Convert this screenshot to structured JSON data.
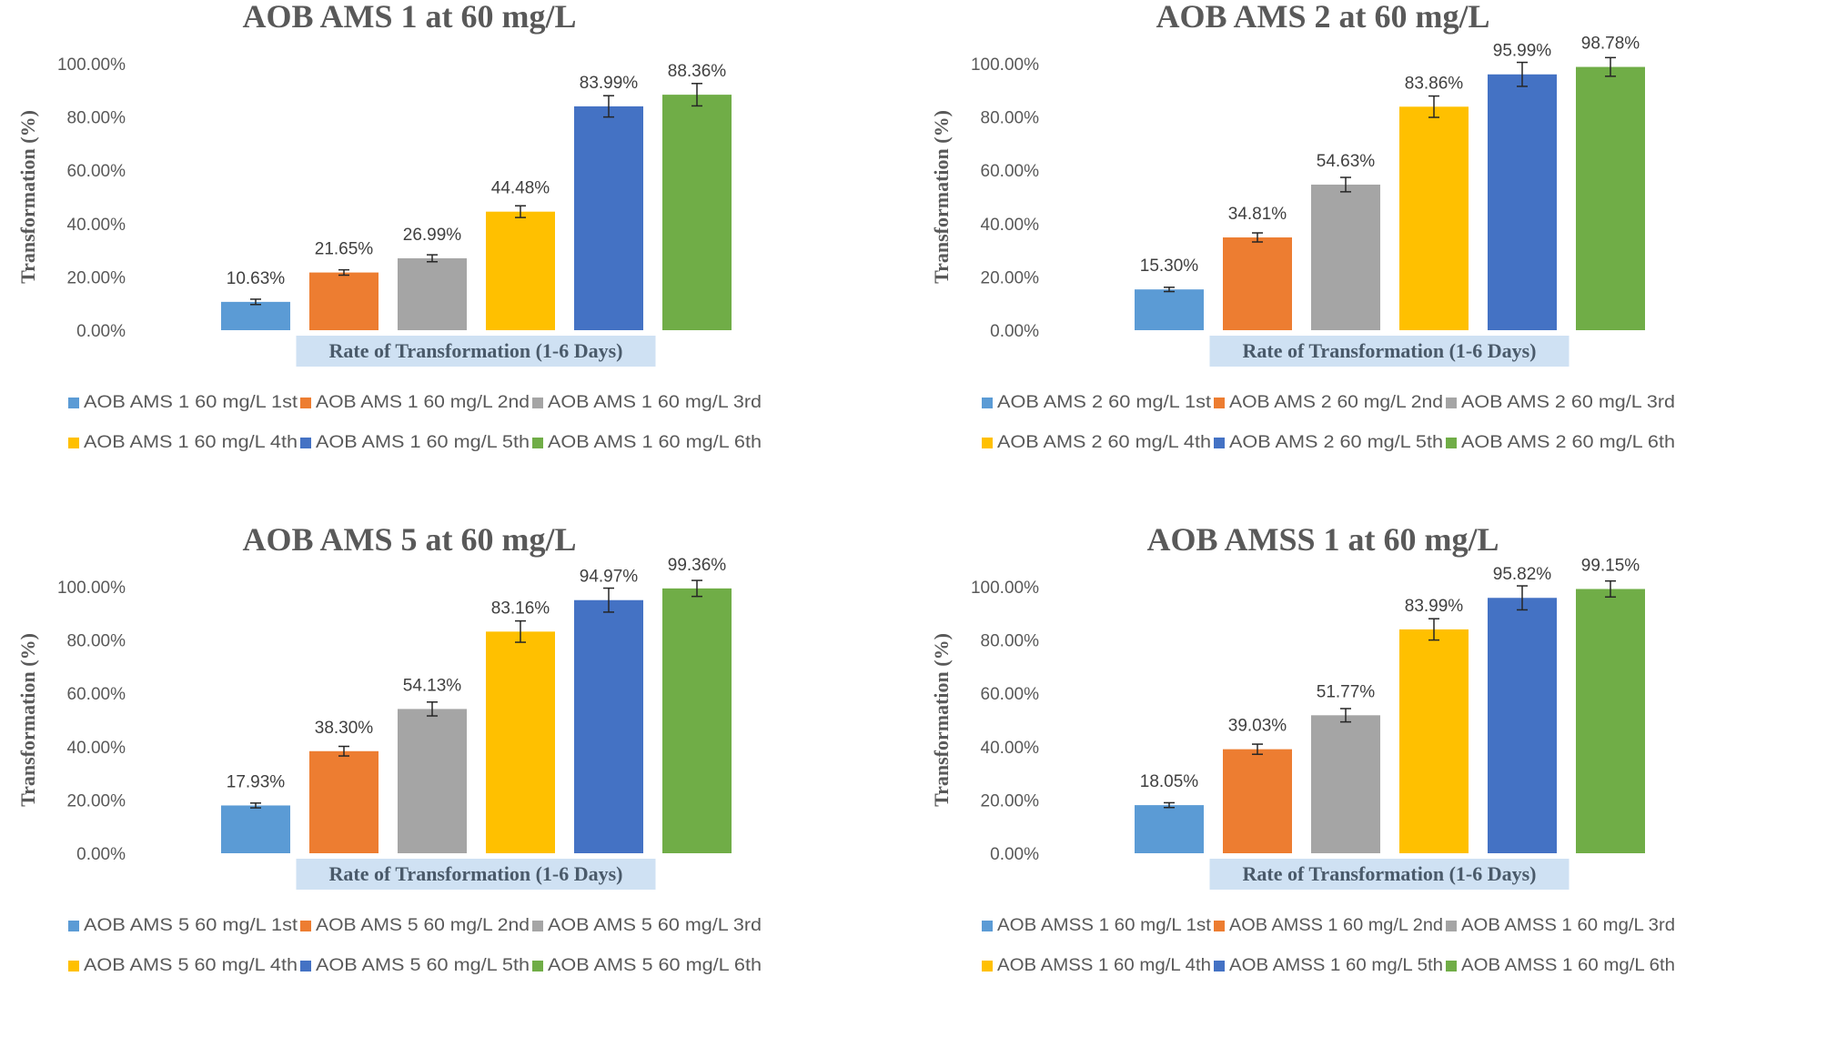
{
  "chart_data": [
    {
      "type": "bar",
      "title": "AOB AMS 1 at 60 mg/L",
      "ylabel": "Transformation (%)",
      "xlabel": "Rate of Transformation (1-6 Days)",
      "ylim": [
        0,
        100
      ],
      "yticks": [
        "0.00%",
        "20.00%",
        "40.00%",
        "60.00%",
        "80.00%",
        "100.00%"
      ],
      "legend_position": "bottom",
      "error_bars": true,
      "series": [
        {
          "name": "AOB AMS 1 60 mg/L 1st",
          "value": 10.63,
          "label": "10.63%",
          "error": 1.0,
          "color": "#5b9bd5"
        },
        {
          "name": "AOB AMS 1 60 mg/L 2nd",
          "value": 21.65,
          "label": "21.65%",
          "error": 1.0,
          "color": "#ed7d31"
        },
        {
          "name": "AOB AMS 1 60 mg/L 3rd",
          "value": 26.99,
          "label": "26.99%",
          "error": 1.3,
          "color": "#a5a5a5"
        },
        {
          "name": "AOB AMS 1 60 mg/L 4th",
          "value": 44.48,
          "label": "44.48%",
          "error": 2.2,
          "color": "#ffc000"
        },
        {
          "name": "AOB AMS 1 60 mg/L 5th",
          "value": 83.99,
          "label": "83.99%",
          "error": 4.0,
          "color": "#4472c4"
        },
        {
          "name": "AOB AMS 1 60 mg/L 6th",
          "value": 88.36,
          "label": "88.36%",
          "error": 4.2,
          "color": "#70ad47"
        }
      ]
    },
    {
      "type": "bar",
      "title": "AOB AMS 2 at 60 mg/L",
      "ylabel": "Transformation (%)",
      "xlabel": "Rate of Transformation (1-6 Days)",
      "ylim": [
        0,
        100
      ],
      "yticks": [
        "0.00%",
        "20.00%",
        "40.00%",
        "60.00%",
        "80.00%",
        "100.00%"
      ],
      "legend_position": "bottom",
      "error_bars": true,
      "series": [
        {
          "name": "AOB AMS 2 60 mg/L 1st",
          "value": 15.3,
          "label": "15.30%",
          "error": 0.8,
          "color": "#5b9bd5"
        },
        {
          "name": "AOB AMS 2 60 mg/L 2nd",
          "value": 34.81,
          "label": "34.81%",
          "error": 1.7,
          "color": "#ed7d31"
        },
        {
          "name": "AOB AMS 2 60 mg/L 3rd",
          "value": 54.63,
          "label": "54.63%",
          "error": 2.7,
          "color": "#a5a5a5"
        },
        {
          "name": "AOB AMS 2 60 mg/L 4th",
          "value": 83.86,
          "label": "83.86%",
          "error": 4.0,
          "color": "#ffc000"
        },
        {
          "name": "AOB AMS 2 60 mg/L 5th",
          "value": 95.99,
          "label": "95.99%",
          "error": 4.5,
          "color": "#4472c4"
        },
        {
          "name": "AOB AMS 2 60 mg/L 6th",
          "value": 98.78,
          "label": "98.78%",
          "error": 3.5,
          "color": "#70ad47"
        }
      ]
    },
    {
      "type": "bar",
      "title": "AOB AMS 5 at 60 mg/L",
      "ylabel": "Transformation (%)",
      "xlabel": "Rate of Transformation (1-6 Days)",
      "ylim": [
        0,
        100
      ],
      "yticks": [
        "0.00%",
        "20.00%",
        "40.00%",
        "60.00%",
        "80.00%",
        "100.00%"
      ],
      "legend_position": "bottom",
      "error_bars": true,
      "series": [
        {
          "name": "AOB AMS 5 60  mg/L 1st",
          "value": 17.93,
          "label": "17.93%",
          "error": 0.9,
          "color": "#5b9bd5"
        },
        {
          "name": "AOB AMS 5 60  mg/L 2nd",
          "value": 38.3,
          "label": "38.30%",
          "error": 1.8,
          "color": "#ed7d31"
        },
        {
          "name": "AOB AMS 5 60  mg/L 3rd",
          "value": 54.13,
          "label": "54.13%",
          "error": 2.6,
          "color": "#a5a5a5"
        },
        {
          "name": "AOB AMS 5 60  mg/L 4th",
          "value": 83.16,
          "label": "83.16%",
          "error": 4.0,
          "color": "#ffc000"
        },
        {
          "name": "AOB AMS 5 60  mg/L 5th",
          "value": 94.97,
          "label": "94.97%",
          "error": 4.5,
          "color": "#4472c4"
        },
        {
          "name": "AOB AMS 5 60  mg/L 6th",
          "value": 99.36,
          "label": "99.36%",
          "error": 3.0,
          "color": "#70ad47"
        }
      ]
    },
    {
      "type": "bar",
      "title": "AOB AMSS 1 at 60 mg/L",
      "ylabel": "Transformation (%)",
      "xlabel": "Rate of Transformation (1-6 Days)",
      "ylim": [
        0,
        100
      ],
      "yticks": [
        "0.00%",
        "20.00%",
        "40.00%",
        "60.00%",
        "80.00%",
        "100.00%"
      ],
      "legend_position": "bottom",
      "error_bars": true,
      "series": [
        {
          "name": "AOB AMSS 1 60 mg/L 1st",
          "value": 18.05,
          "label": "18.05%",
          "error": 0.9,
          "color": "#5b9bd5"
        },
        {
          "name": "AOB AMSS 1 60 mg/L 2nd",
          "value": 39.03,
          "label": "39.03%",
          "error": 1.9,
          "color": "#ed7d31"
        },
        {
          "name": "AOB AMSS 1 60 mg/L 3rd",
          "value": 51.77,
          "label": "51.77%",
          "error": 2.5,
          "color": "#a5a5a5"
        },
        {
          "name": "AOB AMSS 1 60 mg/L 4th",
          "value": 83.99,
          "label": "83.99%",
          "error": 4.0,
          "color": "#ffc000"
        },
        {
          "name": "AOB AMSS 1 60 mg/L 5th",
          "value": 95.82,
          "label": "95.82%",
          "error": 4.5,
          "color": "#4472c4"
        },
        {
          "name": "AOB AMSS 1 60 mg/L 6th",
          "value": 99.15,
          "label": "99.15%",
          "error": 3.0,
          "color": "#70ad47"
        }
      ]
    }
  ]
}
